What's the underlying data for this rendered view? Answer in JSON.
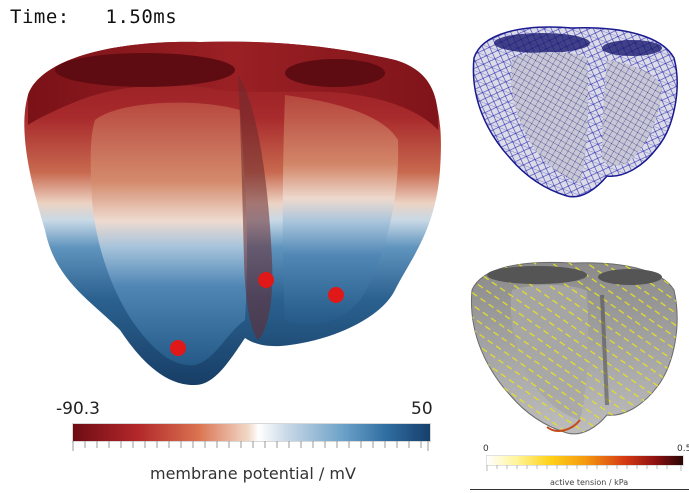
{
  "time_label": "Time:   1.50ms",
  "membrane_colorbar": {
    "min_label": "-90.3",
    "max_label": "50",
    "title": "membrane potential / mV",
    "min": -90.3,
    "max": 50
  },
  "tension_colorbar": {
    "min_label": "0",
    "max_label": "0.5",
    "title": "active tension / kPa",
    "min": 0,
    "max": 0.5
  },
  "stimulus_points": {
    "count": 3,
    "color": "#e01818"
  },
  "colors": {
    "depolarized_red": "#8e1a1f",
    "resting_blue": "#1c4d7a",
    "mesh_blue": "#2a2ab0",
    "tension_gray": "#9a9a9a"
  },
  "icons": [
    "heart-potential-render",
    "heart-mesh-render",
    "heart-tension-render"
  ]
}
